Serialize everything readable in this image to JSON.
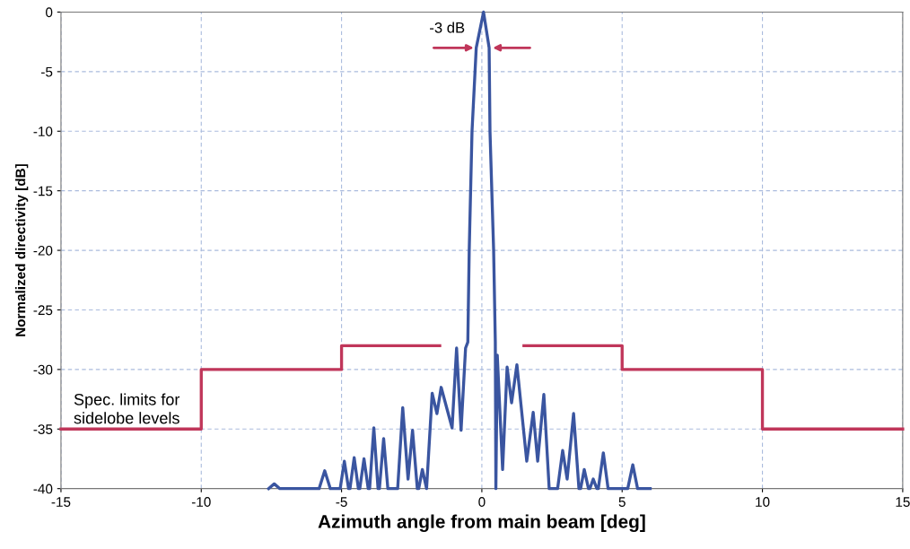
{
  "chart_data": {
    "type": "line",
    "xlabel": "Azimuth angle from main beam [deg]",
    "ylabel": "Normalized directivity [dB]",
    "xlim": [
      -15,
      15
    ],
    "ylim": [
      -40,
      0
    ],
    "xticks": [
      -15,
      -10,
      -5,
      0,
      5,
      10,
      15
    ],
    "yticks": [
      0,
      -5,
      -10,
      -15,
      -20,
      -25,
      -30,
      -35,
      -40
    ],
    "grid": true,
    "marker": "none",
    "line_style": "solid",
    "series": [
      {
        "color": "#3a55a0",
        "x": [
          -7.6,
          -7.4,
          -7.2,
          -5.8,
          -5.6,
          -5.4,
          -5.05,
          -4.9,
          -4.75,
          -4.7,
          -4.55,
          -4.4,
          -4.35,
          -4.2,
          -4.05,
          -4.0,
          -3.85,
          -3.7,
          -3.65,
          -3.5,
          -3.35,
          -3.0,
          -2.82,
          -2.63,
          -2.47,
          -2.3,
          -2.25,
          -2.12,
          -1.97,
          -1.77,
          -1.6,
          -1.45,
          -1.06,
          -0.9,
          -0.74,
          -0.58,
          -0.5,
          -0.45,
          -0.35,
          -0.2,
          0.06,
          0.26,
          0.29,
          0.42,
          0.48,
          0.5,
          0.55,
          0.74,
          0.9,
          1.06,
          1.25,
          1.6,
          1.83,
          1.99,
          2.21,
          2.4,
          2.7,
          2.88,
          3.04,
          3.27,
          3.46,
          3.52,
          3.65,
          3.8,
          3.85,
          3.97,
          4.1,
          4.15,
          4.33,
          4.5,
          5.2,
          5.38,
          5.55,
          6.0
        ],
        "values": [
          -40,
          -39.6,
          -40,
          -40,
          -38.5,
          -40,
          -40,
          -37.7,
          -40,
          -40,
          -37.4,
          -40,
          -40,
          -37.5,
          -40,
          -40,
          -34.9,
          -40,
          -40,
          -35.8,
          -40,
          -40,
          -33.2,
          -39.2,
          -35.1,
          -40,
          -40,
          -38.4,
          -40,
          -32.0,
          -33.7,
          -31.5,
          -34.9,
          -28.2,
          -35.1,
          -28.2,
          -27.7,
          -20,
          -10,
          -3,
          0,
          -3,
          -10,
          -20,
          -27.7,
          -40,
          -28.8,
          -38.4,
          -29.8,
          -32.8,
          -29.6,
          -37.7,
          -33.6,
          -37.7,
          -32.1,
          -40,
          -40,
          -36.8,
          -39.2,
          -33.7,
          -40,
          -40,
          -38.4,
          -40,
          -40,
          -39.2,
          -40,
          -40,
          -37.0,
          -40,
          -40,
          -38.0,
          -40,
          -40
        ]
      },
      {
        "color": "#c0365a",
        "x": [
          -15,
          -10,
          -10,
          -5,
          -5,
          -1.5,
          0,
          1.5,
          5,
          5,
          10,
          10,
          15
        ],
        "values": [
          -35,
          -35,
          -30,
          -30,
          -28,
          -28,
          null,
          -28,
          -28,
          -30,
          -30,
          -35,
          -35
        ]
      }
    ],
    "annotations": [
      {
        "text": "-3 dB",
        "x": 0,
        "y": -3
      },
      "Spec. limits for\nsidelobe levels"
    ]
  }
}
